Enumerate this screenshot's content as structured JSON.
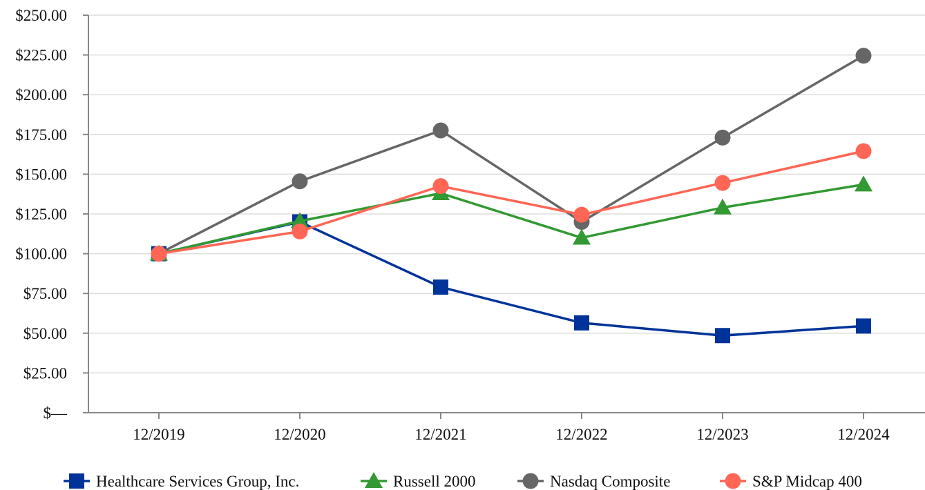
{
  "chart_data": {
    "type": "line",
    "x": [
      "12/2019",
      "12/2020",
      "12/2021",
      "12/2022",
      "12/2023",
      "12/2024"
    ],
    "ylim": [
      0,
      250
    ],
    "y_ticks": [
      "$—",
      "$25.00",
      "$50.00",
      "$75.00",
      "$100.00",
      "$125.00",
      "$150.00",
      "$175.00",
      "$200.00",
      "$225.00",
      "$250.00"
    ],
    "grid": "horizontal",
    "legend_position": "bottom",
    "series": [
      {
        "name": "Healthcare Services Group, Inc.",
        "color": "#003399",
        "marker": "square",
        "values": [
          100.0,
          120.0,
          79.0,
          56.5,
          48.5,
          54.5
        ]
      },
      {
        "name": "Russell 2000",
        "color": "#339933",
        "marker": "triangle",
        "values": [
          100.0,
          120.5,
          138.0,
          110.0,
          129.0,
          143.5
        ]
      },
      {
        "name": "Nasdaq Composite",
        "color": "#666666",
        "marker": "circle",
        "values": [
          100.0,
          145.5,
          177.5,
          120.0,
          173.0,
          224.5
        ]
      },
      {
        "name": "S&P Midcap 400",
        "color": "#ff6655",
        "marker": "circle",
        "values": [
          100.0,
          114.0,
          142.5,
          124.5,
          144.5,
          164.5
        ]
      }
    ]
  }
}
